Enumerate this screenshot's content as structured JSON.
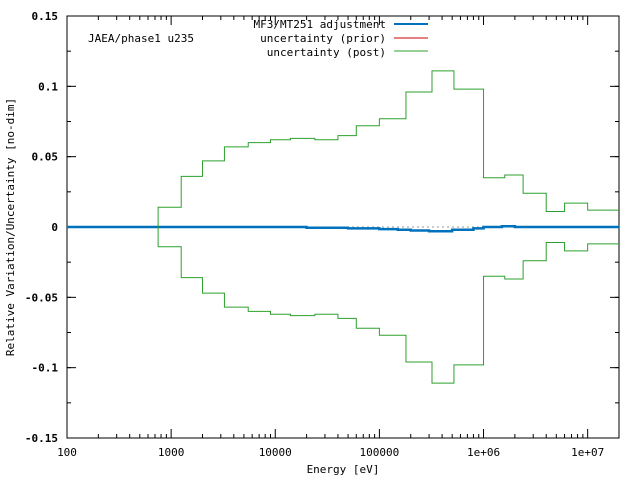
{
  "chart_data": {
    "type": "line",
    "step": true,
    "title": "",
    "annotation": "JAEA/phase1 u235",
    "xlabel": "Energy [eV]",
    "ylabel": "Relative Variation/Uncertainty [no-dim]",
    "xscale": "log",
    "xlim": [
      100,
      20000000
    ],
    "ylim": [
      -0.15,
      0.15
    ],
    "grid": false,
    "legend_position": "top",
    "x_tick_values": [
      100,
      1000,
      10000,
      100000,
      1000000,
      10000000
    ],
    "x_tick_labels": [
      "100",
      "1000",
      "10000",
      "100000",
      "1e+06",
      "1e+07"
    ],
    "y_tick_values": [
      -0.15,
      -0.1,
      -0.05,
      0,
      0.05,
      0.1,
      0.15
    ],
    "y_tick_labels": [
      "-0.15",
      "-0.1",
      "-0.05",
      "0",
      "0.05",
      "0.1",
      "0.15"
    ],
    "series": [
      {
        "name": "MF3/MT251 adjustment",
        "color": "#0072BD",
        "x": [
          100,
          10000,
          20000,
          50000,
          100000,
          150000,
          200000,
          300000,
          500000,
          800000,
          1000000,
          1500000,
          2000000,
          4000000,
          6000000,
          10000000,
          20000000
        ],
        "y": [
          0,
          0,
          -0.0005,
          -0.001,
          -0.0015,
          -0.002,
          -0.0025,
          -0.003,
          -0.002,
          -0.001,
          0,
          0.0005,
          0,
          0,
          0,
          0,
          0
        ]
      },
      {
        "name": "uncertainty (prior)",
        "color": "#cc0000",
        "x": [],
        "y": []
      },
      {
        "name": "uncertainty (post)",
        "color": "#2ca02c",
        "x": [
          750,
          1250,
          2000,
          3250,
          5500,
          9000,
          14000,
          24000,
          40000,
          60000,
          100000,
          180000,
          320000,
          520000,
          1000000,
          1600000,
          2400000,
          4000000,
          6000000,
          10000000,
          20000000
        ],
        "y": [
          0.014,
          0.036,
          0.047,
          0.057,
          0.06,
          0.062,
          0.063,
          0.062,
          0.065,
          0.072,
          0.077,
          0.096,
          0.111,
          0.098,
          0.035,
          0.037,
          0.024,
          0.011,
          0.017,
          0.012,
          0.012
        ],
        "symmetric": true
      }
    ]
  }
}
